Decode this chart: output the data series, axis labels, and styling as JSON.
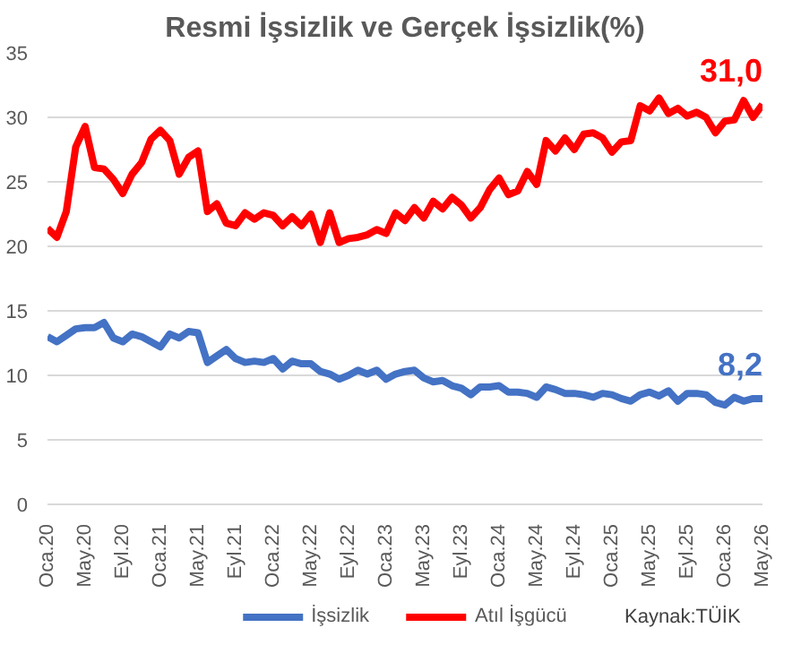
{
  "chart_data": {
    "type": "line",
    "title": "Resmi İşsizlik ve Gerçek İşsizlik(%)",
    "x": [
      "2020-01",
      "2020-02",
      "2020-03",
      "2020-04",
      "2020-05",
      "2020-06",
      "2020-07",
      "2020-08",
      "2020-09",
      "2020-10",
      "2020-11",
      "2020-12",
      "2021-01",
      "2021-02",
      "2021-03",
      "2021-04",
      "2021-05",
      "2021-06",
      "2021-07",
      "2021-08",
      "2021-09",
      "2021-10",
      "2021-11",
      "2021-12",
      "2022-01",
      "2022-02",
      "2022-03",
      "2022-04",
      "2022-05",
      "2022-06",
      "2022-07",
      "2022-08",
      "2022-09",
      "2022-10",
      "2022-11",
      "2022-12",
      "2023-01",
      "2023-02",
      "2023-03",
      "2023-04",
      "2023-05",
      "2023-06",
      "2023-07",
      "2023-08",
      "2023-09",
      "2023-10",
      "2023-11",
      "2023-12",
      "2024-01",
      "2024-02",
      "2024-03",
      "2024-04",
      "2024-05",
      "2024-06",
      "2024-07",
      "2024-08",
      "2024-09",
      "2024-10",
      "2024-11",
      "2024-12",
      "2025-01",
      "2025-02",
      "2025-03",
      "2025-04",
      "2025-05",
      "2025-06",
      "2025-07",
      "2025-08",
      "2025-09",
      "2025-10",
      "2025-11",
      "2025-12",
      "2026-01",
      "2026-02",
      "2026-03",
      "2026-04",
      "2026-05"
    ],
    "series": [
      {
        "name": "İşsizlik",
        "color": "#4472c4",
        "values": [
          13.0,
          12.6,
          13.1,
          13.6,
          13.7,
          13.7,
          14.1,
          12.9,
          12.6,
          13.2,
          13.0,
          12.6,
          12.2,
          13.2,
          12.9,
          13.4,
          13.3,
          11.0,
          11.5,
          12.0,
          11.3,
          11.0,
          11.1,
          11.0,
          11.3,
          10.5,
          11.1,
          10.9,
          10.9,
          10.3,
          10.1,
          9.7,
          10.0,
          10.4,
          10.1,
          10.4,
          9.7,
          10.1,
          10.3,
          10.4,
          9.8,
          9.5,
          9.6,
          9.2,
          9.0,
          8.5,
          9.1,
          9.1,
          9.2,
          8.7,
          8.7,
          8.6,
          8.3,
          9.1,
          8.9,
          8.6,
          8.6,
          8.5,
          8.3,
          8.6,
          8.5,
          8.2,
          8.0,
          8.5,
          8.7,
          8.4,
          8.8,
          8.0,
          8.6,
          8.6,
          8.5,
          7.9,
          7.7,
          8.3,
          8.0,
          8.2,
          8.2
        ]
      },
      {
        "name": "Atıl İşgücü",
        "color": "#ff0000",
        "values": [
          21.4,
          20.7,
          22.7,
          27.7,
          29.3,
          26.1,
          26.0,
          25.2,
          24.1,
          25.6,
          26.5,
          28.3,
          29.0,
          28.2,
          25.6,
          26.9,
          27.4,
          22.7,
          23.3,
          21.8,
          21.6,
          22.6,
          22.1,
          22.6,
          22.4,
          21.6,
          22.3,
          21.6,
          22.5,
          20.3,
          22.6,
          20.3,
          20.6,
          20.7,
          20.9,
          21.3,
          21.0,
          22.6,
          22.0,
          23.0,
          22.2,
          23.5,
          22.9,
          23.8,
          23.2,
          22.2,
          23.0,
          24.4,
          25.3,
          24.0,
          24.3,
          25.8,
          24.8,
          28.2,
          27.4,
          28.4,
          27.5,
          28.7,
          28.8,
          28.4,
          27.3,
          28.1,
          28.2,
          30.9,
          30.5,
          31.5,
          30.3,
          30.7,
          30.1,
          30.4,
          30.0,
          28.8,
          29.7,
          29.8,
          31.3,
          30.0,
          31.0
        ]
      }
    ],
    "xlim": [
      "2020-01",
      "2026-05"
    ],
    "xticks": [
      {
        "value": "2020-01",
        "label": "Oca.20"
      },
      {
        "value": "2020-05",
        "label": "May.20"
      },
      {
        "value": "2020-09",
        "label": "Eyl.20"
      },
      {
        "value": "2021-01",
        "label": "Oca.21"
      },
      {
        "value": "2021-05",
        "label": "May.21"
      },
      {
        "value": "2021-09",
        "label": "Eyl.21"
      },
      {
        "value": "2022-01",
        "label": "Oca.22"
      },
      {
        "value": "2022-05",
        "label": "May.22"
      },
      {
        "value": "2022-09",
        "label": "Eyl.22"
      },
      {
        "value": "2023-01",
        "label": "Oca.23"
      },
      {
        "value": "2023-05",
        "label": "May.23"
      },
      {
        "value": "2023-09",
        "label": "Eyl.23"
      },
      {
        "value": "2024-01",
        "label": "Oca.24"
      },
      {
        "value": "2024-05",
        "label": "May.24"
      },
      {
        "value": "2024-09",
        "label": "Eyl.24"
      },
      {
        "value": "2025-01",
        "label": "Oca.25"
      },
      {
        "value": "2025-05",
        "label": "May.25"
      },
      {
        "value": "2025-09",
        "label": "Eyl.25"
      },
      {
        "value": "2026-01",
        "label": "Oca.26"
      },
      {
        "value": "2026-05",
        "label": "May.26"
      }
    ],
    "ylim": [
      0,
      35
    ],
    "yticks": [
      0,
      5,
      10,
      15,
      20,
      25,
      30,
      35
    ],
    "grid": "y",
    "legend": "bottom",
    "line_style": "solid",
    "annotations": [
      {
        "text": "8,2",
        "x": "2026-05",
        "y": 8.2
      },
      {
        "text": "31,0",
        "x": "2026-05",
        "y": 31.0
      },
      "Kaynak:TÜİK"
    ]
  }
}
